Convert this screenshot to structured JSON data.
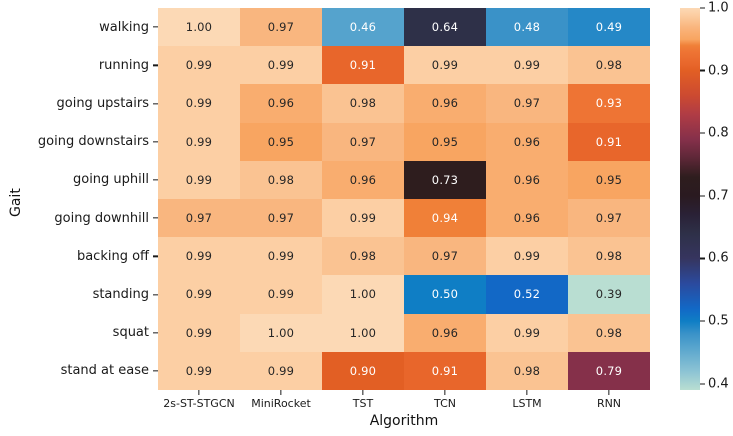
{
  "chart_data": {
    "type": "heatmap",
    "title": "",
    "xlabel": "Algorithm",
    "ylabel": "Gait",
    "columns": [
      "2s-ST-STGCN",
      "MiniRocket",
      "TST",
      "TCN",
      "LSTM",
      "RNN"
    ],
    "rows": [
      "walking",
      "running",
      "going upstairs",
      "going downstairs",
      "going uphill",
      "going downhill",
      "backing off",
      "standing",
      "squat",
      "stand at ease"
    ],
    "values": [
      [
        1.0,
        0.97,
        0.46,
        0.64,
        0.48,
        0.49
      ],
      [
        0.99,
        0.99,
        0.91,
        0.99,
        0.99,
        0.98
      ],
      [
        0.99,
        0.96,
        0.98,
        0.96,
        0.97,
        0.93
      ],
      [
        0.99,
        0.95,
        0.97,
        0.95,
        0.96,
        0.91
      ],
      [
        0.99,
        0.98,
        0.96,
        0.73,
        0.96,
        0.95
      ],
      [
        0.97,
        0.97,
        0.99,
        0.94,
        0.96,
        0.97
      ],
      [
        0.99,
        0.99,
        0.98,
        0.97,
        0.99,
        0.98
      ],
      [
        0.99,
        0.99,
        1.0,
        0.5,
        0.52,
        0.39
      ],
      [
        0.99,
        1.0,
        1.0,
        0.96,
        0.99,
        0.98
      ],
      [
        0.99,
        0.99,
        0.9,
        0.91,
        0.98,
        0.79
      ]
    ],
    "value_decimals": 2,
    "grid": false,
    "legend_position": "right-colorbar",
    "colorbar": {
      "vmin": 0.39,
      "vmax": 1.0,
      "tick_values": [
        1.0,
        0.9,
        0.8,
        0.7,
        0.6,
        0.5,
        0.4
      ],
      "tick_labels": [
        "1.0",
        "0.9",
        "0.8",
        "0.7",
        "0.6",
        "0.5",
        "0.4"
      ]
    },
    "colormap": {
      "name": "icefire",
      "stops": [
        {
          "v": 0.39,
          "c": "#b9ded2"
        },
        {
          "v": 0.42,
          "c": "#8cc3d4"
        },
        {
          "v": 0.46,
          "c": "#55a3cd"
        },
        {
          "v": 0.48,
          "c": "#3a92c8"
        },
        {
          "v": 0.5,
          "c": "#0f7ec5"
        },
        {
          "v": 0.52,
          "c": "#1268c6"
        },
        {
          "v": 0.56,
          "c": "#2b4a9e"
        },
        {
          "v": 0.6,
          "c": "#36355f"
        },
        {
          "v": 0.64,
          "c": "#2e3048"
        },
        {
          "v": 0.67,
          "c": "#2a2136"
        },
        {
          "v": 0.7,
          "c": "#2a1a20"
        },
        {
          "v": 0.73,
          "c": "#2e1d1e"
        },
        {
          "v": 0.76,
          "c": "#5d2737"
        },
        {
          "v": 0.79,
          "c": "#85304a"
        },
        {
          "v": 0.83,
          "c": "#b03c45"
        },
        {
          "v": 0.86,
          "c": "#cc4a31"
        },
        {
          "v": 0.9,
          "c": "#e25f24"
        },
        {
          "v": 0.91,
          "c": "#e8662b"
        },
        {
          "v": 0.93,
          "c": "#ee7434"
        },
        {
          "v": 0.94,
          "c": "#f08038"
        },
        {
          "v": 0.95,
          "c": "#f8a561"
        },
        {
          "v": 0.96,
          "c": "#f9ad6f"
        },
        {
          "v": 0.97,
          "c": "#f9b67f"
        },
        {
          "v": 0.98,
          "c": "#fac392"
        },
        {
          "v": 0.99,
          "c": "#fccfa4"
        },
        {
          "v": 1.0,
          "c": "#fcd9b5"
        }
      ]
    },
    "annotation_colors": {
      "light": "#ffffff",
      "dark": "#262626"
    }
  }
}
